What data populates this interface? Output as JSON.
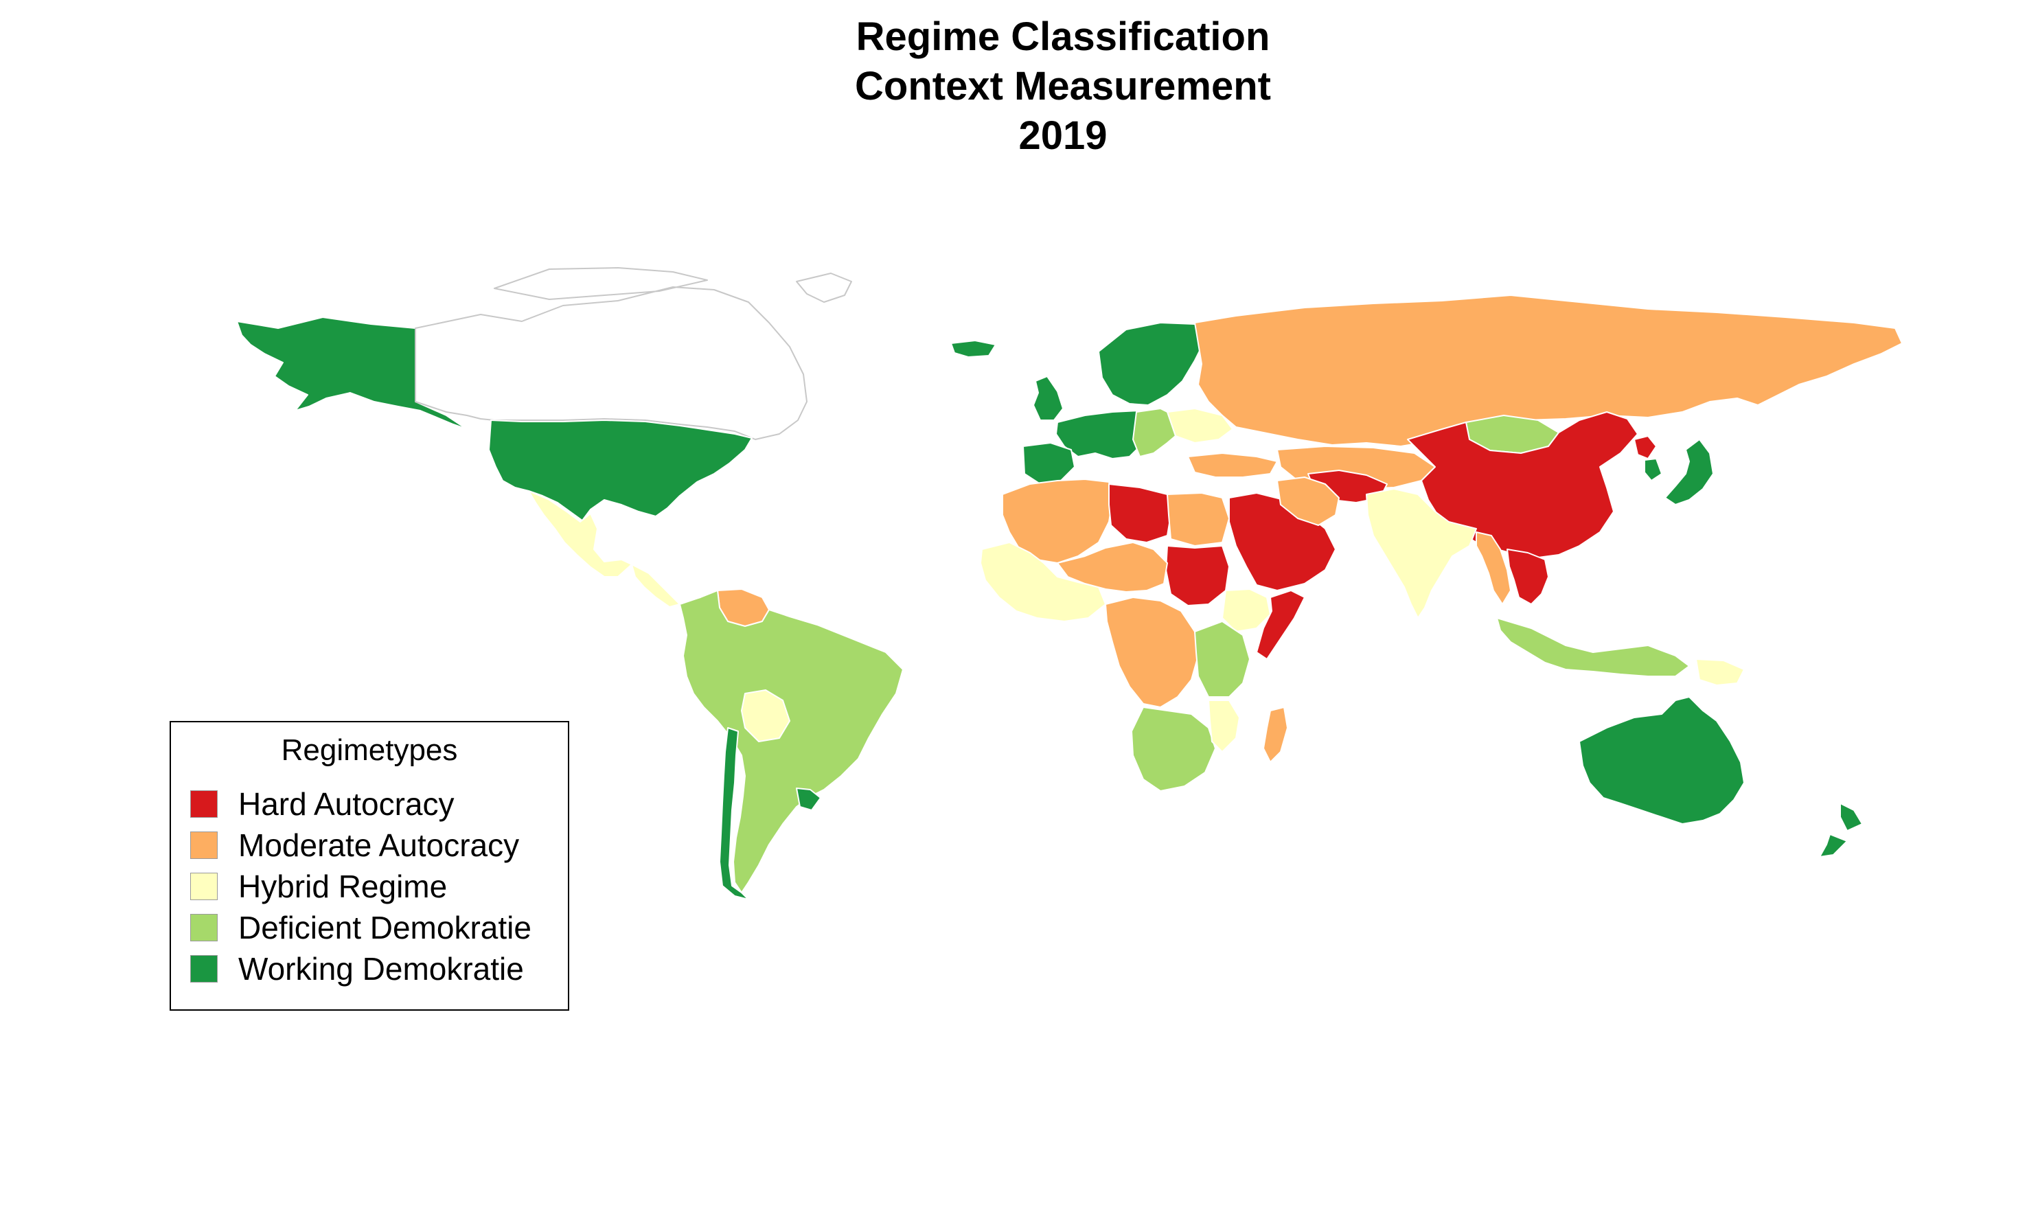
{
  "title": {
    "line1": "Regime Classification",
    "line2": "Context Measurement",
    "line3": "2019"
  },
  "legend": {
    "title": "Regimetypes",
    "items": [
      {
        "label": "Hard Autocracy",
        "color": "#d7191c"
      },
      {
        "label": "Moderate Autocracy",
        "color": "#fdae61"
      },
      {
        "label": "Hybrid Regime",
        "color": "#ffffbf"
      },
      {
        "label": "Deficient Demokratie",
        "color": "#a6d96a"
      },
      {
        "label": "Working Demokratie",
        "color": "#1a9641"
      }
    ]
  },
  "regions": [
    {
      "name": "Alaska",
      "class": 4
    },
    {
      "name": "Canada",
      "class": null
    },
    {
      "name": "Greenland",
      "class": null
    },
    {
      "name": "United States",
      "class": 4
    },
    {
      "name": "Mexico",
      "class": 2
    },
    {
      "name": "Central America",
      "class": 2
    },
    {
      "name": "Venezuela",
      "class": 1
    },
    {
      "name": "South America",
      "class": 3
    },
    {
      "name": "Bolivia",
      "class": 2
    },
    {
      "name": "Chile",
      "class": 4
    },
    {
      "name": "Uruguay",
      "class": 4
    },
    {
      "name": "Iceland",
      "class": 4
    },
    {
      "name": "Scandinavia",
      "class": 4
    },
    {
      "name": "United Kingdom",
      "class": 4
    },
    {
      "name": "Western Europe",
      "class": 4
    },
    {
      "name": "Iberia",
      "class": 4
    },
    {
      "name": "Eastern Europe",
      "class": 3
    },
    {
      "name": "Ukraine",
      "class": 2
    },
    {
      "name": "Russia",
      "class": 1
    },
    {
      "name": "Turkey",
      "class": 1
    },
    {
      "name": "Central Asia",
      "class": 1
    },
    {
      "name": "Afghanistan",
      "class": 0
    },
    {
      "name": "Mongolia",
      "class": 3
    },
    {
      "name": "China",
      "class": 0
    },
    {
      "name": "North Korea",
      "class": 0
    },
    {
      "name": "Japan",
      "class": 4
    },
    {
      "name": "South Korea",
      "class": 4
    },
    {
      "name": "India",
      "class": 2
    },
    {
      "name": "Myanmar",
      "class": 1
    },
    {
      "name": "Vietnam Laos",
      "class": 0
    },
    {
      "name": "Indonesia",
      "class": 3
    },
    {
      "name": "Papua New Guinea",
      "class": 2
    },
    {
      "name": "Australia",
      "class": 4
    },
    {
      "name": "New Zealand",
      "class": 4
    },
    {
      "name": "Maghreb",
      "class": 1
    },
    {
      "name": "Libya",
      "class": 0
    },
    {
      "name": "Egypt",
      "class": 1
    },
    {
      "name": "Arabian Peninsula",
      "class": 0
    },
    {
      "name": "Iran",
      "class": 1
    },
    {
      "name": "Sudan",
      "class": 0
    },
    {
      "name": "West Africa",
      "class": 2
    },
    {
      "name": "Sahel",
      "class": 1
    },
    {
      "name": "Ethiopia",
      "class": 2
    },
    {
      "name": "Somalia",
      "class": 0
    },
    {
      "name": "Central Africa",
      "class": 1
    },
    {
      "name": "East Africa",
      "class": 3
    },
    {
      "name": "Southern Africa",
      "class": 3
    },
    {
      "name": "Mozambique",
      "class": 2
    },
    {
      "name": "Madagascar",
      "class": 1
    }
  ]
}
